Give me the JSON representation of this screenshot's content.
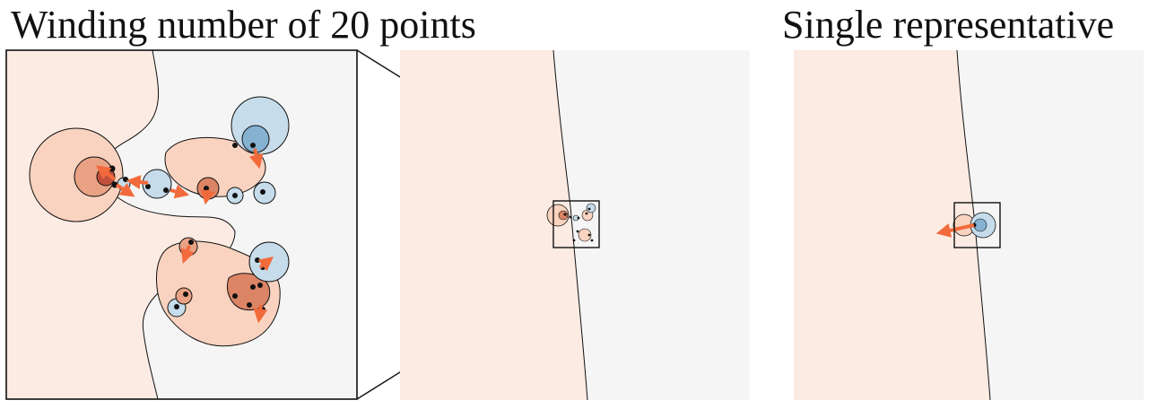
{
  "titles": {
    "left": "Winding number of 20 points",
    "right": "Single representative"
  },
  "colors": {
    "background_light": "#f5f5f5",
    "background_warm": "#fbebe3",
    "positive_lobe": "#f7c9b1",
    "positive_lobe_dark": "#d9765a",
    "negative_lobe": "#c6dcea",
    "negative_lobe_dark": "#86b2d1",
    "arrow": "#f26a3b",
    "point": "#111111",
    "line": "#111111"
  }
}
